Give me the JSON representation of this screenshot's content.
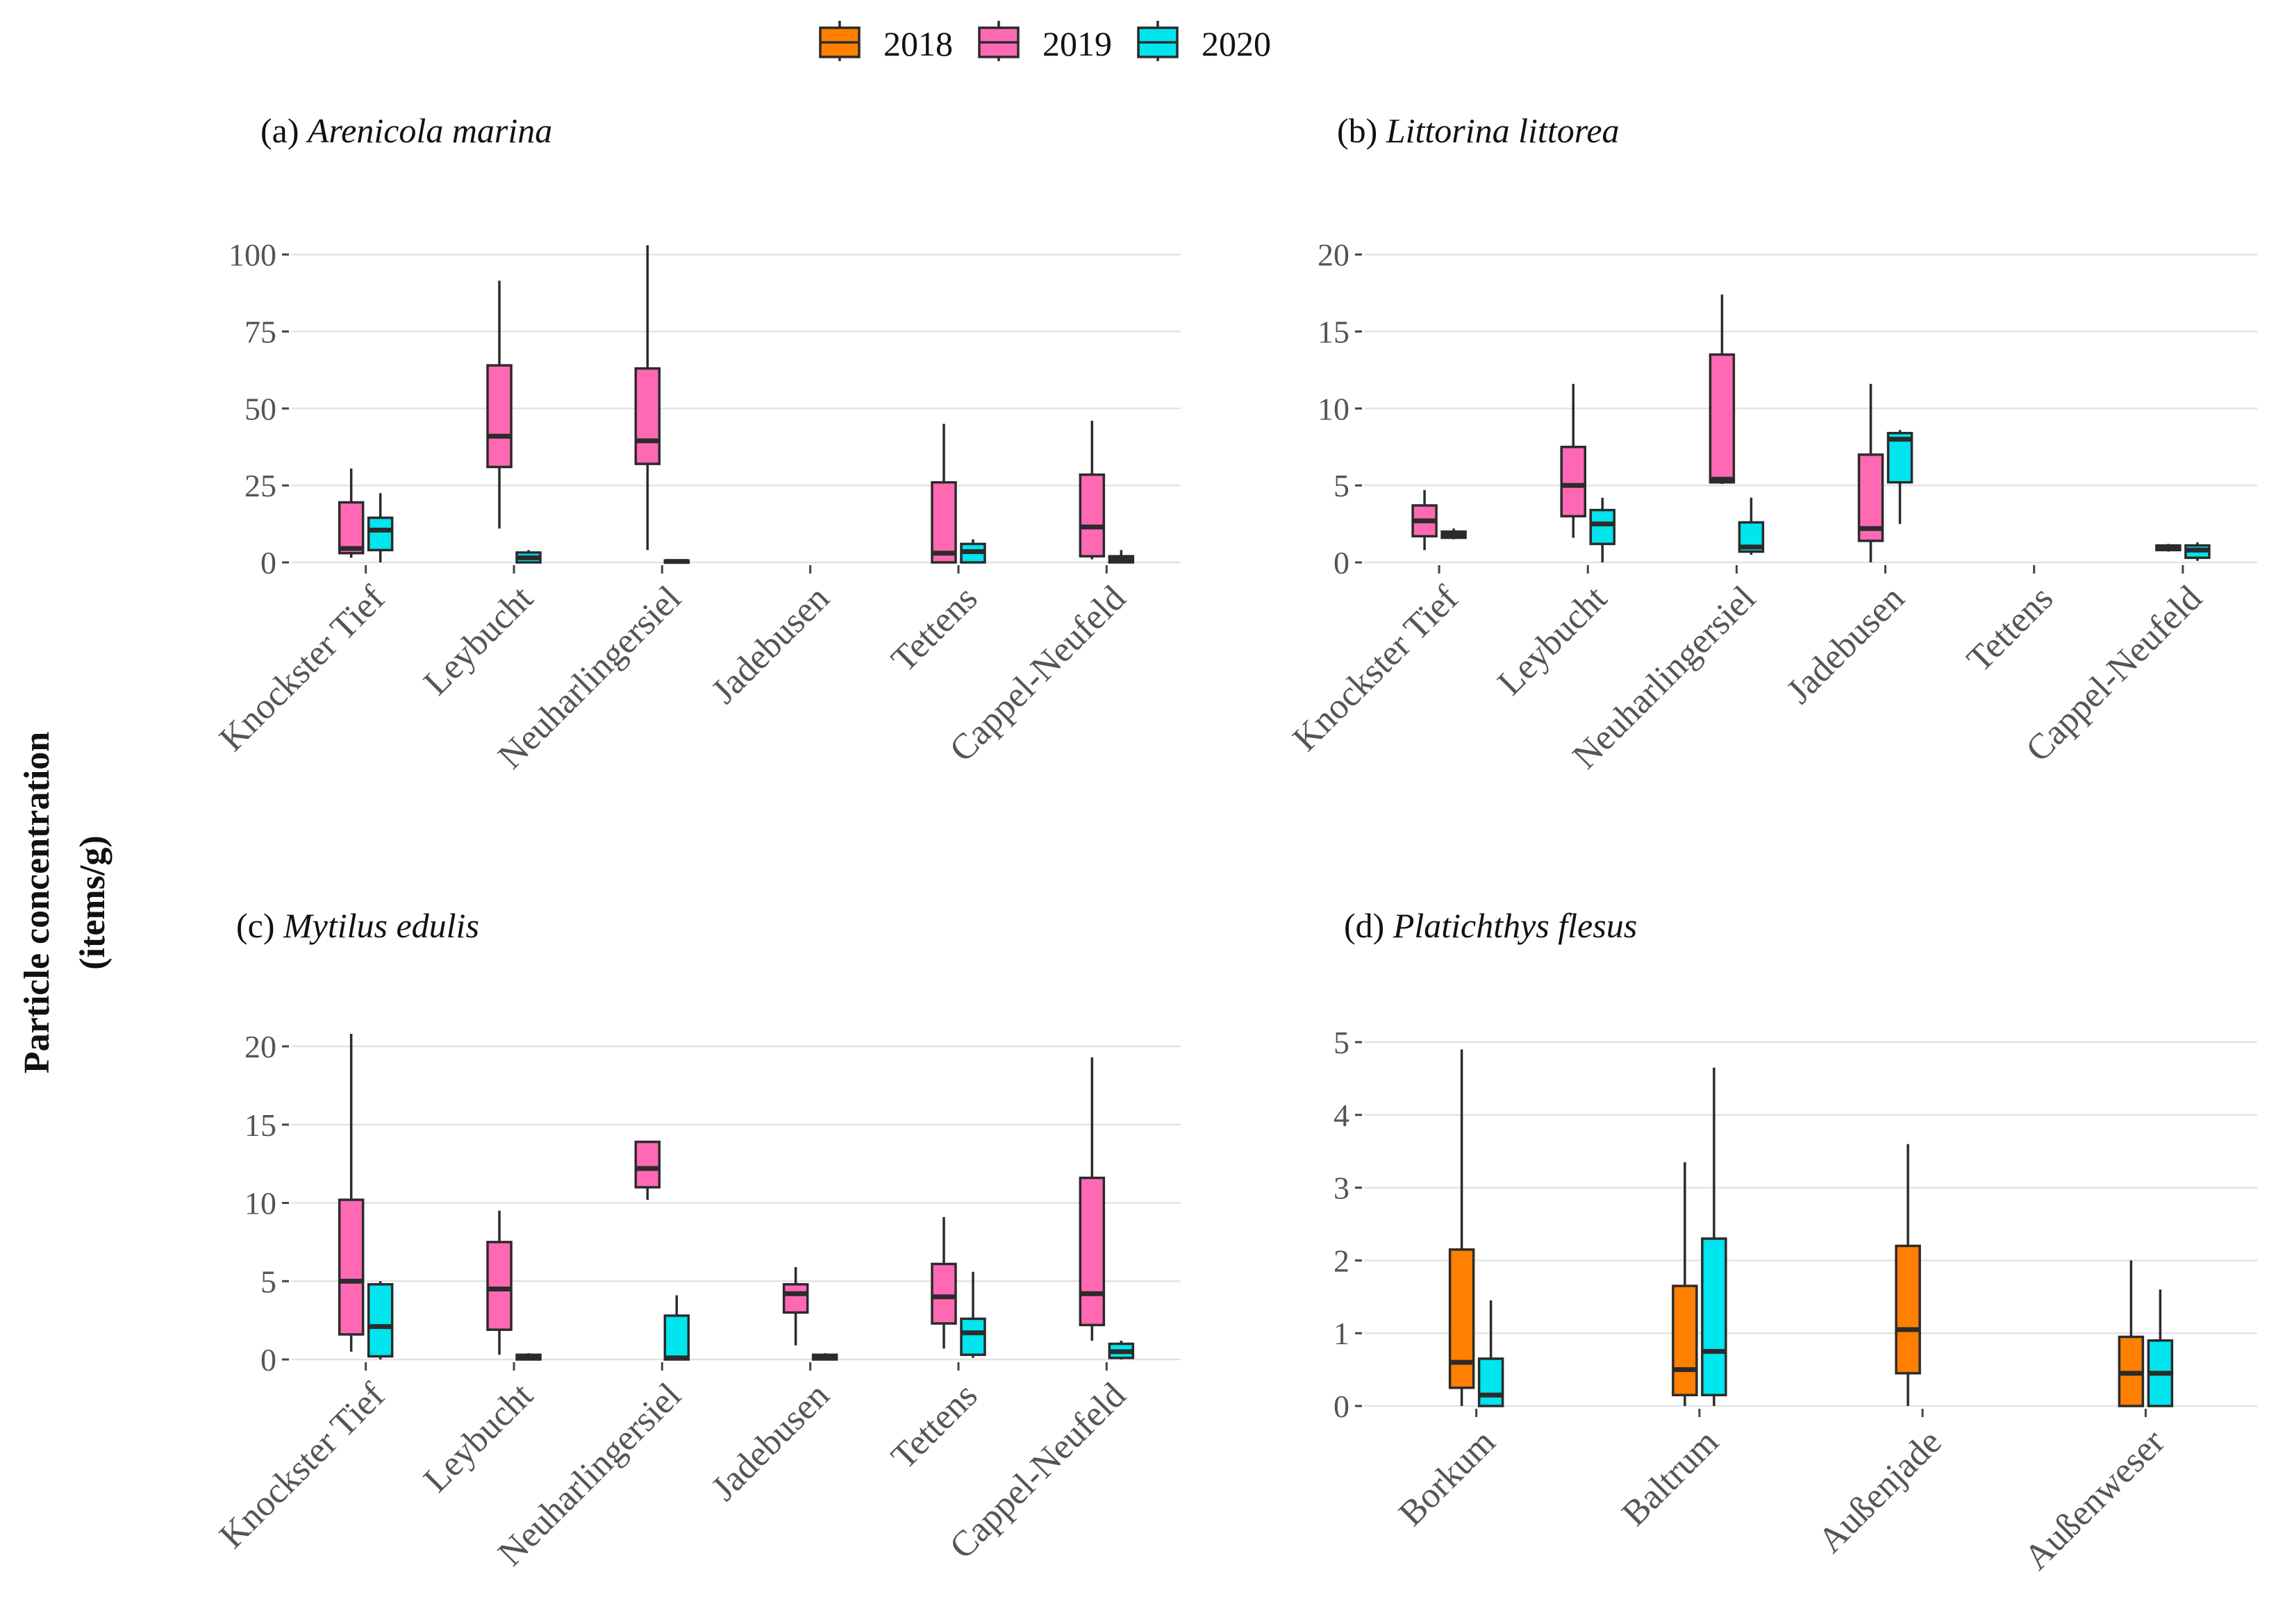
{
  "figure": {
    "y_axis_label_line1": "Particle concentration",
    "y_axis_label_line2": "(items/g)"
  },
  "legend": {
    "items": [
      {
        "label": "2018",
        "color": "#FF7F00"
      },
      {
        "label": "2019",
        "color": "#FF69B4"
      },
      {
        "label": "2020",
        "color": "#00E5EE"
      }
    ]
  },
  "chart_data": [
    {
      "type": "boxplot",
      "panel": "(a)",
      "species": "Arenicola marina",
      "categories": [
        "Knockster Tief",
        "Leybucht",
        "Neuharlingersiel",
        "Jadebusen",
        "Tettens",
        "Cappel-Neufeld"
      ],
      "ylim": [
        0,
        106
      ],
      "yticks": [
        0,
        25,
        50,
        75,
        100
      ],
      "series": [
        {
          "name": "2019",
          "color": "#FF69B4",
          "boxes": [
            {
              "min": 1.5,
              "q1": 3,
              "median": 4.5,
              "q3": 19.5,
              "max": 30.5
            },
            {
              "min": 11,
              "q1": 31,
              "median": 41,
              "q3": 64,
              "max": 91.5
            },
            {
              "min": 4,
              "q1": 32,
              "median": 39.5,
              "q3": 63,
              "max": 103
            },
            null,
            {
              "min": 0,
              "q1": 0,
              "median": 3,
              "q3": 26,
              "max": 45
            },
            {
              "min": 1,
              "q1": 2,
              "median": 11.5,
              "q3": 28.5,
              "max": 46
            }
          ]
        },
        {
          "name": "2020",
          "color": "#00E5EE",
          "boxes": [
            {
              "min": 0,
              "q1": 4,
              "median": 10.5,
              "q3": 14.5,
              "max": 22.5
            },
            {
              "min": 0,
              "q1": 0,
              "median": 1.5,
              "q3": 3.2,
              "max": 4
            },
            {
              "min": 0,
              "q1": 0,
              "median": 0.3,
              "q3": 0.6,
              "max": 0.8
            },
            null,
            {
              "min": 0,
              "q1": 0,
              "median": 3.5,
              "q3": 6,
              "max": 7.5
            },
            {
              "min": 0,
              "q1": 0,
              "median": 1,
              "q3": 2,
              "max": 4
            }
          ]
        }
      ]
    },
    {
      "type": "boxplot",
      "panel": "(b)",
      "species": "Littorina littorea",
      "categories": [
        "Knockster Tief",
        "Leybucht",
        "Neuharlingersiel",
        "Jadebusen",
        "Tettens",
        "Cappel-Neufeld"
      ],
      "ylim": [
        0,
        21.2
      ],
      "yticks": [
        0,
        5,
        10,
        15,
        20
      ],
      "series": [
        {
          "name": "2019",
          "color": "#FF69B4",
          "boxes": [
            {
              "min": 0.8,
              "q1": 1.7,
              "median": 2.7,
              "q3": 3.7,
              "max": 4.7
            },
            {
              "min": 1.6,
              "q1": 3,
              "median": 5,
              "q3": 7.5,
              "max": 11.6
            },
            {
              "min": 5.1,
              "q1": 5.2,
              "median": 5.4,
              "q3": 13.5,
              "max": 17.4
            },
            {
              "min": 0,
              "q1": 1.4,
              "median": 2.2,
              "q3": 7,
              "max": 11.6
            },
            null,
            {
              "min": 0.7,
              "q1": 0.8,
              "median": 1,
              "q3": 1.1,
              "max": 1.2
            }
          ]
        },
        {
          "name": "2020",
          "color": "#00E5EE",
          "boxes": [
            {
              "min": 1.5,
              "q1": 1.6,
              "median": 1.8,
              "q3": 2,
              "max": 2.2
            },
            {
              "min": 0,
              "q1": 1.2,
              "median": 2.5,
              "q3": 3.4,
              "max": 4.2
            },
            {
              "min": 0.5,
              "q1": 0.7,
              "median": 1,
              "q3": 2.6,
              "max": 4.2
            },
            {
              "min": 2.5,
              "q1": 5.2,
              "median": 8,
              "q3": 8.4,
              "max": 8.6
            },
            null,
            {
              "min": 0.1,
              "q1": 0.3,
              "median": 0.8,
              "q3": 1.1,
              "max": 1.3
            }
          ]
        }
      ]
    },
    {
      "type": "boxplot",
      "panel": "(c)",
      "species": "Mytilus edulis",
      "categories": [
        "Knockster Tief",
        "Leybucht",
        "Neuharlingersiel",
        "Jadebusen",
        "Tettens",
        "Cappel-Neufeld"
      ],
      "ylim": [
        0,
        21.2
      ],
      "yticks": [
        0,
        5,
        10,
        15,
        20
      ],
      "series": [
        {
          "name": "2019",
          "color": "#FF69B4",
          "boxes": [
            {
              "min": 0.5,
              "q1": 1.6,
              "median": 5,
              "q3": 10.2,
              "max": 20.8
            },
            {
              "min": 0.3,
              "q1": 1.9,
              "median": 4.5,
              "q3": 7.5,
              "max": 9.5
            },
            {
              "min": 10.2,
              "q1": 11,
              "median": 12.2,
              "q3": 13.9,
              "max": 13.9
            },
            {
              "min": 0.9,
              "q1": 3,
              "median": 4.2,
              "q3": 4.8,
              "max": 5.9
            },
            {
              "min": 0.7,
              "q1": 2.3,
              "median": 4,
              "q3": 6.1,
              "max": 9.1
            },
            {
              "min": 1.2,
              "q1": 2.2,
              "median": 4.2,
              "q3": 11.6,
              "max": 19.3
            }
          ]
        },
        {
          "name": "2020",
          "color": "#00E5EE",
          "boxes": [
            {
              "min": 0,
              "q1": 0.2,
              "median": 2.1,
              "q3": 4.8,
              "max": 5
            },
            {
              "min": 0,
              "q1": 0,
              "median": 0.1,
              "q3": 0.3,
              "max": 0.4
            },
            {
              "min": 0,
              "q1": 0,
              "median": 0.1,
              "q3": 2.8,
              "max": 4.1
            },
            {
              "min": 0,
              "q1": 0,
              "median": 0.1,
              "q3": 0.3,
              "max": 0.4
            },
            {
              "min": 0.1,
              "q1": 0.3,
              "median": 1.7,
              "q3": 2.6,
              "max": 5.6
            },
            {
              "min": 0,
              "q1": 0.1,
              "median": 0.5,
              "q3": 1,
              "max": 1.2
            }
          ]
        }
      ]
    },
    {
      "type": "boxplot",
      "panel": "(d)",
      "species": "Platichthys flesus",
      "categories": [
        "Borkum",
        "Baltrum",
        "Außenjade",
        "Außenweser"
      ],
      "ylim": [
        0,
        5.2
      ],
      "yticks": [
        0,
        1,
        2,
        3,
        4,
        5
      ],
      "series": [
        {
          "name": "2018",
          "color": "#FF7F00",
          "boxes": [
            {
              "min": 0,
              "q1": 0.25,
              "median": 0.6,
              "q3": 2.15,
              "max": 4.9
            },
            {
              "min": 0,
              "q1": 0.15,
              "median": 0.5,
              "q3": 1.65,
              "max": 3.35
            },
            {
              "min": 0,
              "q1": 0.45,
              "median": 1.05,
              "q3": 2.2,
              "max": 3.6
            },
            {
              "min": 0,
              "q1": 0,
              "median": 0.45,
              "q3": 0.95,
              "max": 2
            }
          ]
        },
        {
          "name": "2020",
          "color": "#00E5EE",
          "boxes": [
            {
              "min": 0,
              "q1": 0,
              "median": 0.15,
              "q3": 0.65,
              "max": 1.45
            },
            {
              "min": 0,
              "q1": 0.15,
              "median": 0.75,
              "q3": 2.3,
              "max": 4.65
            },
            null,
            {
              "min": 0,
              "q1": 0,
              "median": 0.45,
              "q3": 0.9,
              "max": 1.6
            }
          ]
        }
      ]
    }
  ]
}
